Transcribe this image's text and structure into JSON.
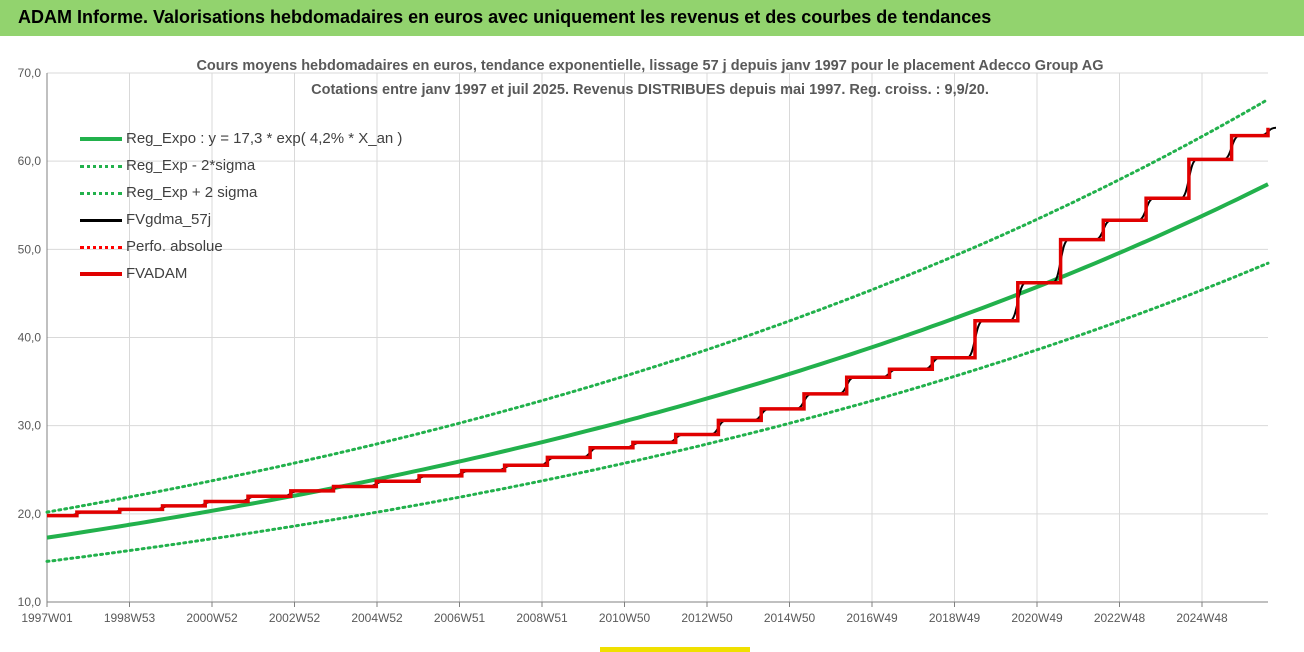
{
  "header": {
    "title": "ADAM Informe. Valorisations hebdomadaires en euros avec uniquement les revenus et des courbes de tendances"
  },
  "chart_data": {
    "type": "line",
    "title_line1": "Cours moyens hebdomadaires en euros, tendance exponentielle, lissage 57 j depuis janv 1997  pour le placement Adecco Group AG",
    "title_line2": "Cotations entre janv 1997 et juil 2025. Revenus DISTRIBUES depuis mai 1997. Reg. croiss. : 9,9/20.",
    "ylim": [
      10,
      70
    ],
    "yticks": [
      "10,0",
      "20,0",
      "30,0",
      "40,0",
      "50,0",
      "60,0",
      "70,0"
    ],
    "xlim": [
      1997.0,
      2025.55
    ],
    "xticks": [
      "1997W01",
      "1998W53",
      "2000W52",
      "2002W52",
      "2004W52",
      "2006W51",
      "2008W51",
      "2010W50",
      "2012W50",
      "2014W50",
      "2016W49",
      "2018W49",
      "2020W49",
      "2022W48",
      "2024W48"
    ],
    "grid": true,
    "legend_position": "top-left",
    "series": [
      {
        "name": "Reg_Expo : y = 17,3 * exp( 4,2% *  X_an )",
        "color": "#22b14c",
        "style": "solid",
        "formula": {
          "a": 17.3,
          "r": 0.042
        }
      },
      {
        "name": "Reg_Exp - 2*sigma",
        "color": "#22b14c",
        "style": "dotted",
        "formula": {
          "a": 14.6,
          "r": 0.042
        }
      },
      {
        "name": "Reg_Exp + 2 sigma",
        "color": "#22b14c",
        "style": "dotted",
        "formula": {
          "a": 20.2,
          "r": 0.042
        }
      },
      {
        "name": "FVgdma_57j",
        "color": "#000000",
        "style": "solid",
        "smoothed": true
      },
      {
        "name": "Perfo. absolue",
        "color": "#ff0000",
        "style": "dotted"
      },
      {
        "name": "FVADAM",
        "color": "#e00000",
        "style": "solid",
        "steps": {
          "x": [
            1997.0,
            1997.7,
            1998.7,
            1999.7,
            2000.7,
            2001.7,
            2002.7,
            2003.7,
            2004.7,
            2005.7,
            2006.7,
            2007.7,
            2008.7,
            2009.7,
            2010.7,
            2011.7,
            2012.7,
            2013.7,
            2014.7,
            2015.7,
            2016.7,
            2017.7,
            2018.7,
            2019.7,
            2020.7,
            2021.7,
            2022.7,
            2023.7,
            2024.7,
            2025.55
          ],
          "y": [
            19.8,
            20.2,
            20.5,
            20.9,
            21.4,
            22.0,
            22.6,
            23.1,
            23.7,
            24.3,
            24.9,
            25.5,
            26.4,
            27.5,
            28.1,
            29.0,
            30.6,
            31.9,
            33.6,
            35.5,
            36.4,
            37.7,
            41.9,
            46.2,
            51.1,
            53.3,
            55.8,
            60.2,
            62.9,
            63.8
          ]
        }
      }
    ]
  }
}
